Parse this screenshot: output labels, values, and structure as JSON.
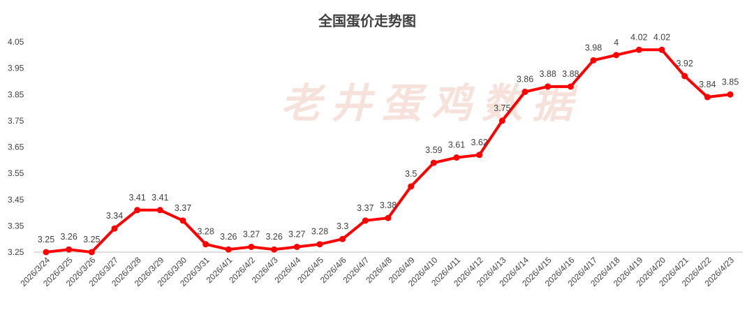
{
  "chart_data": {
    "type": "line",
    "title": "全国蛋价走势图",
    "watermark": "老井蛋鸡数据",
    "categories": [
      "2026/3/24",
      "2026/3/25",
      "2026/3/26",
      "2026/3/27",
      "2026/3/28",
      "2026/3/29",
      "2026/3/30",
      "2026/3/31",
      "2026/4/1",
      "2026/4/2",
      "2026/4/3",
      "2026/4/4",
      "2026/4/5",
      "2026/4/6",
      "2026/4/7",
      "2026/4/8",
      "2026/4/9",
      "2026/4/10",
      "2026/4/11",
      "2026/4/12",
      "2026/4/13",
      "2026/4/14",
      "2026/4/15",
      "2026/4/16",
      "2026/4/17",
      "2026/4/18",
      "2026/4/19",
      "2026/4/20",
      "2026/4/21",
      "2026/4/22",
      "2026/4/23"
    ],
    "values": [
      3.25,
      3.26,
      3.25,
      3.34,
      3.41,
      3.41,
      3.37,
      3.28,
      3.26,
      3.27,
      3.26,
      3.27,
      3.28,
      3.3,
      3.37,
      3.38,
      3.5,
      3.59,
      3.61,
      3.62,
      3.75,
      3.86,
      3.88,
      3.88,
      3.98,
      4,
      4.02,
      4.02,
      3.92,
      3.84,
      3.85
    ],
    "ylim": [
      3.25,
      4.05
    ],
    "yticks": [
      "3.25",
      "3.35",
      "3.45",
      "3.55",
      "3.65",
      "3.75",
      "3.85",
      "3.95",
      "4.05"
    ],
    "xlabel": "",
    "ylabel": "",
    "grid": false,
    "legend": "none",
    "colors": {
      "line": "#ff0000",
      "marker": "#ff0000",
      "text": "#404040",
      "axis": "#bfbfbf",
      "watermark": "#f3d9cf"
    }
  }
}
